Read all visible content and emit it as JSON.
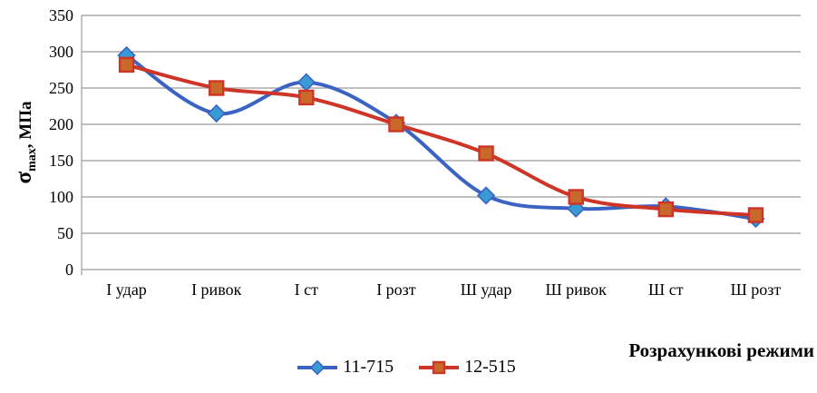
{
  "chart_data": {
    "type": "line",
    "title": "",
    "xlabel": "Розрахункові режими",
    "ylabel": "σmax, МПа",
    "ylabel_parts": {
      "sigma": "σ",
      "sub": "max",
      "rest": ", МПа"
    },
    "categories": [
      "І удар",
      "І ривок",
      "І ст",
      "І розт",
      "Ш удар",
      "Ш ривок",
      "Ш ст",
      "Ш розт"
    ],
    "series": [
      {
        "name": "11-715",
        "marker": "diamond",
        "line_color": "#3A63C4",
        "marker_fill": "#389BD4",
        "values": [
          295,
          215,
          258,
          202,
          102,
          84,
          87,
          70
        ]
      },
      {
        "name": "12-515",
        "marker": "square",
        "line_color": "#CE3527",
        "marker_fill": "#C8682B",
        "values": [
          282,
          250,
          237,
          200,
          160,
          100,
          83,
          75
        ]
      }
    ],
    "ylim": [
      0,
      350
    ],
    "yticks": [
      0,
      50,
      100,
      150,
      200,
      250,
      300,
      350
    ],
    "grid": true,
    "grid_color": "#9B9B9B",
    "legend_position": "bottom",
    "smooth": true
  }
}
